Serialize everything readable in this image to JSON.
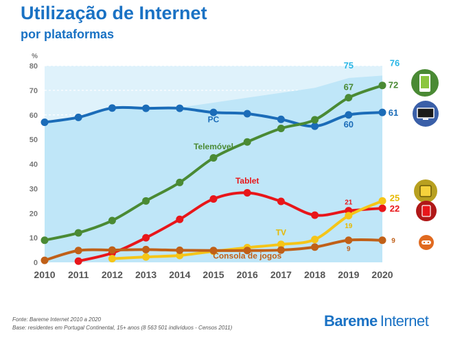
{
  "title": "Utilização de Internet",
  "subtitle": "por plataformas",
  "source": "Fonte: Bareme Internet 2010 a 2020",
  "base": "Base: residentes em Portugal Continental, 15+ anos (8 563 501 indivíduos - Censos 2011)",
  "logo": {
    "part1": "Bareme",
    "part2": "Internet"
  },
  "icons": [
    "smartphone-icon",
    "tv-icon",
    "tablet-icon",
    "tablet-red-icon",
    "gamepad-icon"
  ],
  "chart_data": {
    "type": "line",
    "y_unit": "%",
    "ylim": [
      0,
      80
    ],
    "yticks": [
      0,
      10,
      20,
      30,
      40,
      50,
      60,
      70,
      80
    ],
    "categories": [
      "2010",
      "2011",
      "2012",
      "2013",
      "2014",
      "2015",
      "2016",
      "2017",
      "2018",
      "2019",
      "2020"
    ],
    "area": {
      "values": [
        null,
        null,
        null,
        null,
        63,
        65,
        67,
        69,
        71,
        75,
        76
      ],
      "color": "#bfe6f8"
    },
    "series": [
      {
        "name": "PC",
        "color": "#1b6cb8",
        "values": [
          57,
          59,
          62.8,
          62.7,
          62.7,
          61,
          60.5,
          58.2,
          55.4,
          60,
          61
        ]
      },
      {
        "name": "Telemóvel",
        "color": "#4a8a34",
        "values": [
          9,
          12,
          17,
          25,
          32.5,
          42.5,
          49,
          54.5,
          58,
          67,
          72
        ]
      },
      {
        "name": "Tablet",
        "color": "#e8161a",
        "values": [
          null,
          0.5,
          3.8,
          10,
          17.5,
          25.8,
          28.3,
          24.8,
          19.2,
          21,
          22
        ]
      },
      {
        "name": "TV",
        "color": "#f5c518",
        "values": [
          null,
          null,
          1.5,
          2.2,
          2.8,
          4.5,
          6,
          7.3,
          9.3,
          19,
          25
        ]
      },
      {
        "name": "Consola de jogos",
        "color": "#c06018",
        "values": [
          0.8,
          4.8,
          5,
          5.2,
          4.9,
          4.8,
          4.8,
          5,
          6.2,
          9,
          9
        ]
      }
    ],
    "data_labels": [
      {
        "text": "75",
        "year": "2019",
        "value": 75,
        "color": "#29b6e6",
        "dy": -14,
        "size": 13
      },
      {
        "text": "76",
        "year": "2020",
        "value": 76,
        "color": "#29b6e6",
        "dy": -14,
        "dx": 18,
        "size": 13
      },
      {
        "text": "67",
        "year": "2019",
        "value": 67,
        "color": "#4a8a34",
        "dy": -11,
        "size": 13
      },
      {
        "text": "72",
        "year": "2020",
        "value": 72,
        "color": "#4a8a34",
        "dy": 4,
        "dx": 16,
        "size": 13
      },
      {
        "text": "60",
        "year": "2019",
        "value": 60,
        "color": "#1b6cb8",
        "dy": 18,
        "size": 13
      },
      {
        "text": "61",
        "year": "2020",
        "value": 61,
        "color": "#1b6cb8",
        "dy": 5,
        "dx": 16,
        "size": 13
      },
      {
        "text": "25",
        "year": "2020",
        "value": 25,
        "color": "#e6b800",
        "dy": 0,
        "dx": 18,
        "size": 13
      },
      {
        "text": "21",
        "year": "2019",
        "value": 21,
        "color": "#e8161a",
        "dy": -9,
        "size": 10
      },
      {
        "text": "22",
        "year": "2020",
        "value": 22,
        "color": "#e8161a",
        "dy": 5,
        "dx": 18,
        "size": 13
      },
      {
        "text": "19",
        "year": "2019",
        "value": 19,
        "color": "#e6b800",
        "dy": 18,
        "size": 10
      },
      {
        "text": "9",
        "year": "2019",
        "value": 9,
        "color": "#c06018",
        "dy": 16,
        "size": 10
      },
      {
        "text": "9",
        "year": "2020",
        "value": 9,
        "color": "#c06018",
        "dy": 4,
        "dx": 16,
        "size": 10
      }
    ],
    "series_labels": [
      {
        "text": "PC",
        "color": "#1b6cb8",
        "year": "2015",
        "value": 57
      },
      {
        "text": "Telemóvel",
        "color": "#4a8a34",
        "year": "2015",
        "value": 46
      },
      {
        "text": "Tablet",
        "color": "#e8161a",
        "year": "2016",
        "value": 32
      },
      {
        "text": "TV",
        "color": "#e6b800",
        "year": "2017",
        "value": 11
      },
      {
        "text": "Consola de jogos",
        "color": "#c06018",
        "year": "2016",
        "value": 1.5
      }
    ]
  }
}
